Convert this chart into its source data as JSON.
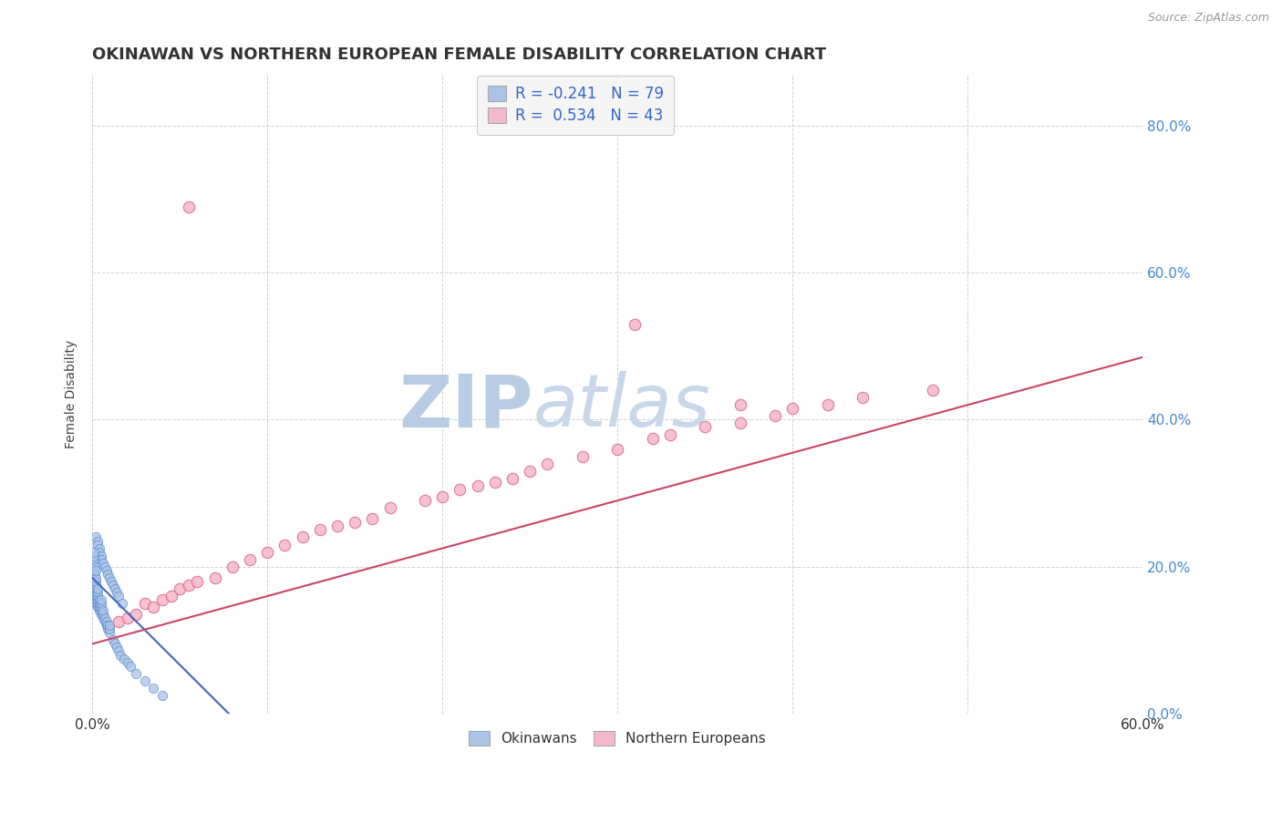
{
  "title": "OKINAWAN VS NORTHERN EUROPEAN FEMALE DISABILITY CORRELATION CHART",
  "source_text": "Source: ZipAtlas.com",
  "ylabel": "Female Disability",
  "xlim": [
    0.0,
    0.6
  ],
  "ylim": [
    0.0,
    0.87
  ],
  "okinawan_color": "#aac4e8",
  "okinawan_edge": "#5588cc",
  "northern_color": "#f5b8ca",
  "northern_edge": "#dd6688",
  "trend_okinawan_color": "#4466bb",
  "trend_northern_color": "#cc4466",
  "watermark_color": "#d0dff0",
  "background_color": "#ffffff",
  "grid_color": "#cccccc",
  "title_fontsize": 13,
  "axis_label_fontsize": 10,
  "tick_color": "#4488cc",
  "okinawan_x": [
    0.001,
    0.001,
    0.001,
    0.001,
    0.001,
    0.001,
    0.001,
    0.001,
    0.001,
    0.001,
    0.002,
    0.002,
    0.002,
    0.002,
    0.002,
    0.002,
    0.002,
    0.002,
    0.003,
    0.003,
    0.003,
    0.003,
    0.003,
    0.003,
    0.004,
    0.004,
    0.004,
    0.004,
    0.005,
    0.005,
    0.005,
    0.005,
    0.005,
    0.006,
    0.006,
    0.006,
    0.007,
    0.007,
    0.008,
    0.008,
    0.009,
    0.009,
    0.01,
    0.01,
    0.01,
    0.012,
    0.013,
    0.014,
    0.015,
    0.016,
    0.018,
    0.02,
    0.022,
    0.025,
    0.03,
    0.035,
    0.04,
    0.002,
    0.003,
    0.003,
    0.004,
    0.004,
    0.005,
    0.005,
    0.006,
    0.007,
    0.008,
    0.009,
    0.01,
    0.011,
    0.012,
    0.013,
    0.014,
    0.015,
    0.017,
    0.001,
    0.001,
    0.001,
    0.001,
    0.002,
    0.002
  ],
  "okinawan_y": [
    0.155,
    0.16,
    0.165,
    0.17,
    0.175,
    0.18,
    0.185,
    0.19,
    0.195,
    0.2,
    0.15,
    0.155,
    0.16,
    0.165,
    0.17,
    0.175,
    0.18,
    0.185,
    0.145,
    0.15,
    0.155,
    0.16,
    0.165,
    0.17,
    0.14,
    0.145,
    0.15,
    0.155,
    0.135,
    0.14,
    0.145,
    0.15,
    0.155,
    0.13,
    0.135,
    0.14,
    0.125,
    0.13,
    0.12,
    0.125,
    0.115,
    0.12,
    0.11,
    0.115,
    0.12,
    0.1,
    0.095,
    0.09,
    0.085,
    0.08,
    0.075,
    0.07,
    0.065,
    0.055,
    0.045,
    0.035,
    0.025,
    0.24,
    0.235,
    0.23,
    0.225,
    0.22,
    0.215,
    0.21,
    0.205,
    0.2,
    0.195,
    0.19,
    0.185,
    0.18,
    0.175,
    0.17,
    0.165,
    0.16,
    0.15,
    0.205,
    0.21,
    0.215,
    0.22,
    0.2,
    0.195
  ],
  "northern_x": [
    0.015,
    0.02,
    0.025,
    0.03,
    0.035,
    0.04,
    0.045,
    0.05,
    0.055,
    0.06,
    0.07,
    0.08,
    0.09,
    0.1,
    0.11,
    0.12,
    0.13,
    0.14,
    0.15,
    0.16,
    0.17,
    0.19,
    0.2,
    0.21,
    0.22,
    0.23,
    0.24,
    0.25,
    0.26,
    0.28,
    0.3,
    0.32,
    0.33,
    0.35,
    0.37,
    0.39,
    0.4,
    0.42,
    0.44,
    0.48,
    0.31,
    0.055,
    0.37
  ],
  "northern_y": [
    0.125,
    0.13,
    0.135,
    0.15,
    0.145,
    0.155,
    0.16,
    0.17,
    0.175,
    0.18,
    0.185,
    0.2,
    0.21,
    0.22,
    0.23,
    0.24,
    0.25,
    0.255,
    0.26,
    0.265,
    0.28,
    0.29,
    0.295,
    0.305,
    0.31,
    0.315,
    0.32,
    0.33,
    0.34,
    0.35,
    0.36,
    0.375,
    0.38,
    0.39,
    0.395,
    0.405,
    0.415,
    0.42,
    0.43,
    0.44,
    0.53,
    0.69,
    0.42
  ],
  "trend_ok_x0": 0.0,
  "trend_ok_x1": 0.078,
  "trend_ok_y0": 0.185,
  "trend_ok_y1": 0.0,
  "trend_ne_x0": 0.0,
  "trend_ne_x1": 0.6,
  "trend_ne_y0": 0.095,
  "trend_ne_y1": 0.485
}
